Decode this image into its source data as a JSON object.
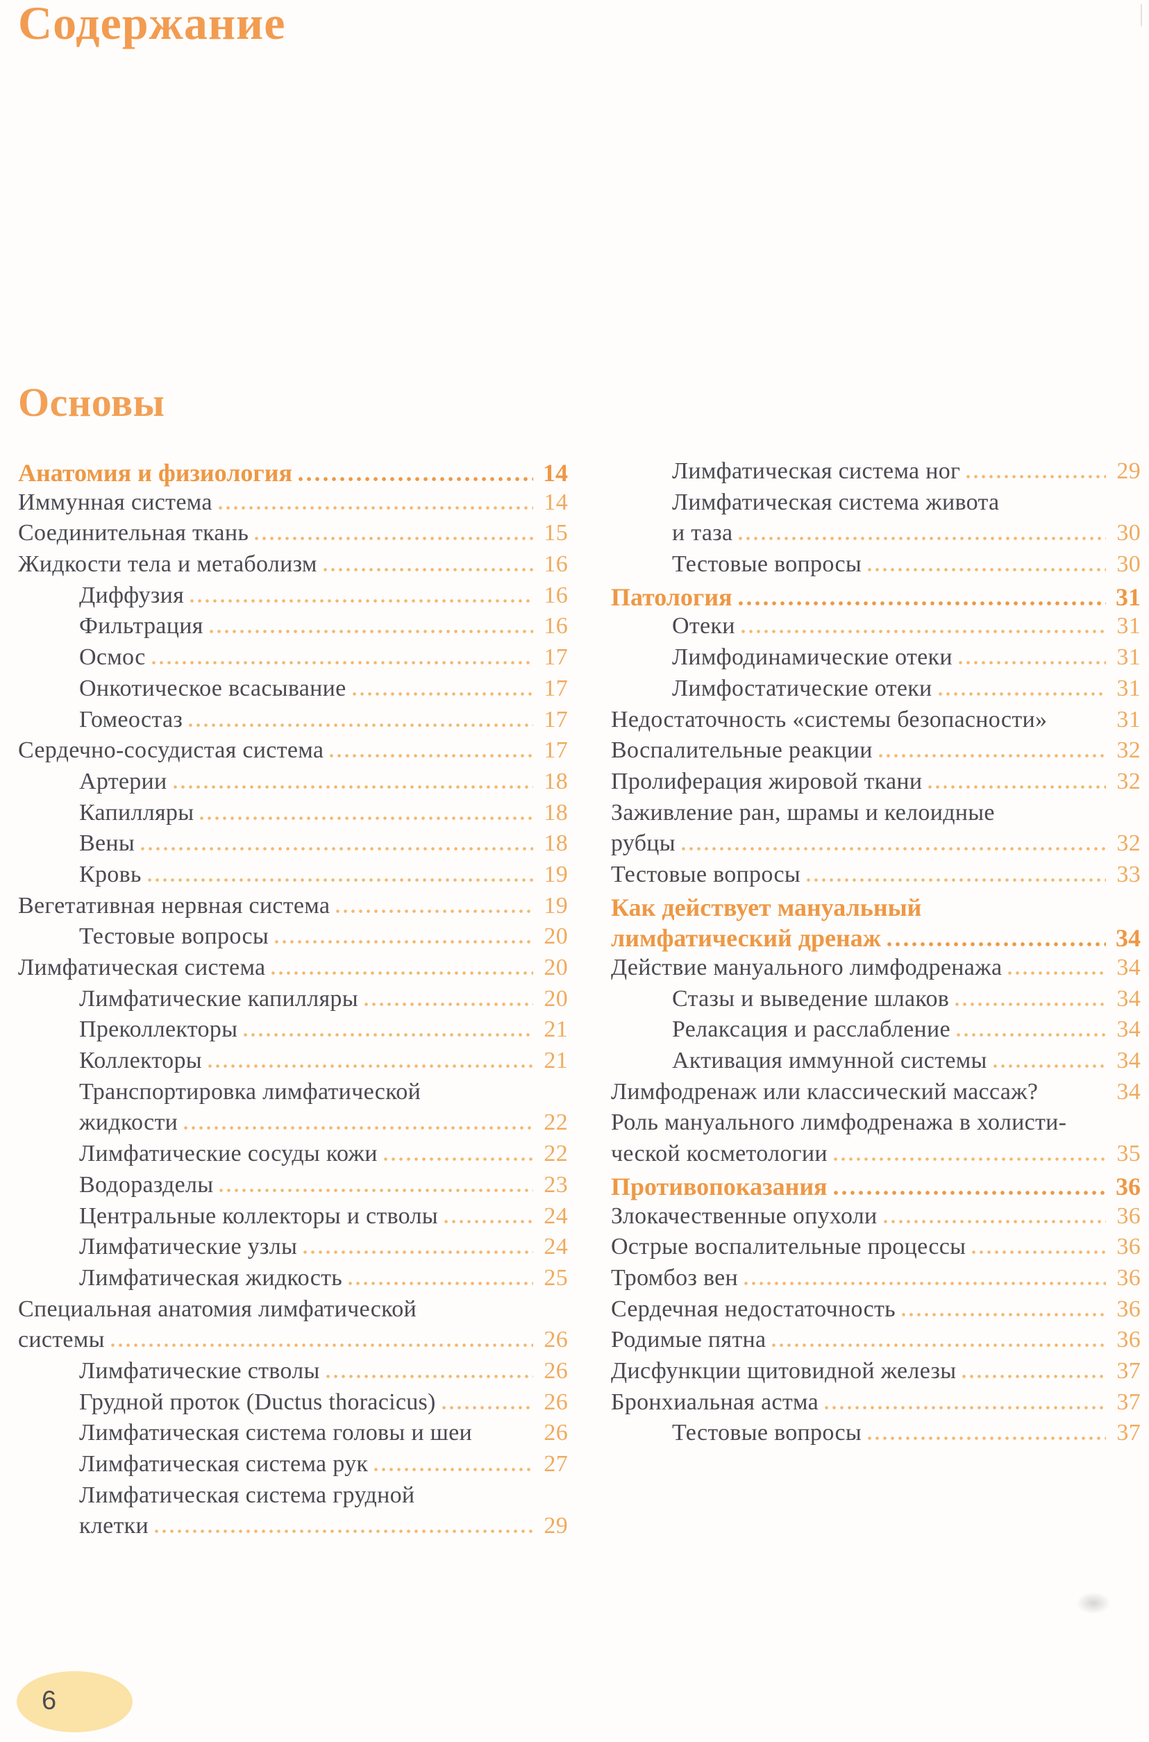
{
  "header": {
    "title": "Содержание",
    "section": "Основы"
  },
  "footer": {
    "page_number": "6"
  },
  "colors": {
    "accent_orange": "#ee9845",
    "page_number_orange": "#f0aa5f",
    "leader_dot_orange": "#f4b76f",
    "body_text": "#4b4a51",
    "oval_background": "#fbe2a6"
  },
  "toc": {
    "left": {
      "lines": [
        {
          "text": "Анатомия и физиология",
          "page": "14",
          "style": "heading",
          "indent": 0,
          "leader": true
        },
        {
          "text": "Иммунная система",
          "page": "14",
          "indent": 0,
          "leader": true
        },
        {
          "text": "Соединительная ткань",
          "page": "15",
          "indent": 0,
          "leader": true
        },
        {
          "text": "Жидкости тела и метаболизм",
          "page": "16",
          "indent": 0,
          "leader": true
        },
        {
          "text": "Диффузия",
          "page": "16",
          "indent": 1,
          "leader": true
        },
        {
          "text": "Фильтрация",
          "page": "16",
          "indent": 1,
          "leader": true
        },
        {
          "text": "Осмос",
          "page": "17",
          "indent": 1,
          "leader": true
        },
        {
          "text": "Онкотическое всасывание",
          "page": "17",
          "indent": 1,
          "leader": true
        },
        {
          "text": "Гомеостаз",
          "page": "17",
          "indent": 1,
          "leader": true
        },
        {
          "text": "Сердечно-сосудистая система",
          "page": "17",
          "indent": 0,
          "leader": true
        },
        {
          "text": "Артерии",
          "page": "18",
          "indent": 1,
          "leader": true
        },
        {
          "text": "Капилляры",
          "page": "18",
          "indent": 1,
          "leader": true
        },
        {
          "text": "Вены",
          "page": "18",
          "indent": 1,
          "leader": true
        },
        {
          "text": "Кровь",
          "page": "19",
          "indent": 1,
          "leader": true
        },
        {
          "text": "Вегетативная нервная система",
          "page": "19",
          "indent": 0,
          "leader": true
        },
        {
          "text": "Тестовые вопросы",
          "page": "20",
          "indent": 1,
          "leader": true
        },
        {
          "text": "Лимфатическая система",
          "page": "20",
          "indent": 0,
          "leader": true
        },
        {
          "text": "Лимфатические капилляры",
          "page": "20",
          "indent": 1,
          "leader": true
        },
        {
          "text": "Преколлекторы",
          "page": "21",
          "indent": 1,
          "leader": true
        },
        {
          "text": "Коллекторы",
          "page": "21",
          "indent": 1,
          "leader": true
        },
        {
          "text": "Транспортировка лимфатической",
          "indent": 1
        },
        {
          "text": "жидкости",
          "page": "22",
          "indent": 1,
          "leader": true
        },
        {
          "text": "Лимфатические сосуды кожи",
          "page": "22",
          "indent": 1,
          "leader": true
        },
        {
          "text": "Водоразделы",
          "page": "23",
          "indent": 1,
          "leader": true
        },
        {
          "text": "Центральные коллекторы и стволы",
          "page": "24",
          "indent": 1,
          "leader": true
        },
        {
          "text": "Лимфатические узлы",
          "page": "24",
          "indent": 1,
          "leader": true
        },
        {
          "text": "Лимфатическая жидкость",
          "page": "25",
          "indent": 1,
          "leader": true
        },
        {
          "text": "Специальная анатомия лимфатической",
          "indent": 0
        },
        {
          "text": "системы",
          "page": "26",
          "indent": 0,
          "leader": true
        },
        {
          "text": "Лимфатические стволы",
          "page": "26",
          "indent": 1,
          "leader": true
        },
        {
          "text": "Грудной проток (Ductus thoracicus)",
          "page": "26",
          "indent": 1,
          "leader": true
        },
        {
          "text": "Лимфатическая система головы и шеи",
          "page": "26",
          "indent": 1,
          "leader": false
        },
        {
          "text": "Лимфатическая система рук",
          "page": "27",
          "indent": 1,
          "leader": true
        },
        {
          "text": "Лимфатическая система грудной",
          "indent": 1
        },
        {
          "text": "клетки",
          "page": "29",
          "indent": 1,
          "leader": true
        }
      ]
    },
    "right": {
      "lines": [
        {
          "text": "Лимфатическая система ног",
          "page": "29",
          "indent": 1,
          "leader": true
        },
        {
          "text": "Лимфатическая система живота",
          "indent": 1
        },
        {
          "text": "и таза",
          "page": "30",
          "indent": 1,
          "leader": true
        },
        {
          "text": "Тестовые вопросы",
          "page": "30",
          "indent": 1,
          "leader": true
        },
        {
          "text": "Патология",
          "page": "31",
          "style": "heading",
          "indent": 0,
          "leader": true
        },
        {
          "text": "Отеки",
          "page": "31",
          "indent": 1,
          "leader": true
        },
        {
          "text": "Лимфодинамические отеки",
          "page": "31",
          "indent": 1,
          "leader": true
        },
        {
          "text": "Лимфостатические отеки",
          "page": "31",
          "indent": 1,
          "leader": true
        },
        {
          "text": "Недостаточность «системы безопасности»",
          "page": "31",
          "indent": 0,
          "leader": false
        },
        {
          "text": "Воспалительные реакции",
          "page": "32",
          "indent": 0,
          "leader": true
        },
        {
          "text": "Пролиферация жировой ткани",
          "page": "32",
          "indent": 0,
          "leader": true
        },
        {
          "text": "Заживление ран, шрамы и келоидные",
          "indent": 0
        },
        {
          "text": "рубцы",
          "page": "32",
          "indent": 0,
          "leader": true
        },
        {
          "text": "Тестовые вопросы",
          "page": "33",
          "indent": 0,
          "leader": true
        },
        {
          "text": "Как действует мануальный",
          "style": "heading",
          "indent": 0
        },
        {
          "text": "лимфатический дренаж",
          "page": "34",
          "style": "heading",
          "indent": 0,
          "leader": true
        },
        {
          "text": "Действие мануального лимфодренажа",
          "page": "34",
          "indent": 0,
          "leader": true
        },
        {
          "text": "Стазы и выведение шлаков",
          "page": "34",
          "indent": 1,
          "leader": true
        },
        {
          "text": "Релаксация и расслабление",
          "page": "34",
          "indent": 1,
          "leader": true
        },
        {
          "text": "Активация иммунной системы",
          "page": "34",
          "indent": 1,
          "leader": true
        },
        {
          "text": "Лимфодренаж или классический массаж?",
          "page": "34",
          "indent": 0,
          "leader": false
        },
        {
          "text": "Роль мануального лимфодренажа в холисти-",
          "indent": 0
        },
        {
          "text": "ческой косметологии",
          "page": "35",
          "indent": 0,
          "leader": true
        },
        {
          "text": "Противопоказания",
          "page": "36",
          "style": "heading",
          "indent": 0,
          "leader": true
        },
        {
          "text": "Злокачественные опухоли",
          "page": "36",
          "indent": 0,
          "leader": true
        },
        {
          "text": "Острые воспалительные процессы",
          "page": "36",
          "indent": 0,
          "leader": true
        },
        {
          "text": "Тромбоз вен",
          "page": "36",
          "indent": 0,
          "leader": true
        },
        {
          "text": "Сердечная недостаточность",
          "page": "36",
          "indent": 0,
          "leader": true
        },
        {
          "text": "Родимые пятна",
          "page": "36",
          "indent": 0,
          "leader": true
        },
        {
          "text": "Дисфункции щитовидной железы",
          "page": "37",
          "indent": 0,
          "leader": true
        },
        {
          "text": "Бронхиальная астма",
          "page": "37",
          "indent": 0,
          "leader": true
        },
        {
          "text": "Тестовые вопросы",
          "page": "37",
          "indent": 1,
          "leader": true
        }
      ]
    }
  }
}
